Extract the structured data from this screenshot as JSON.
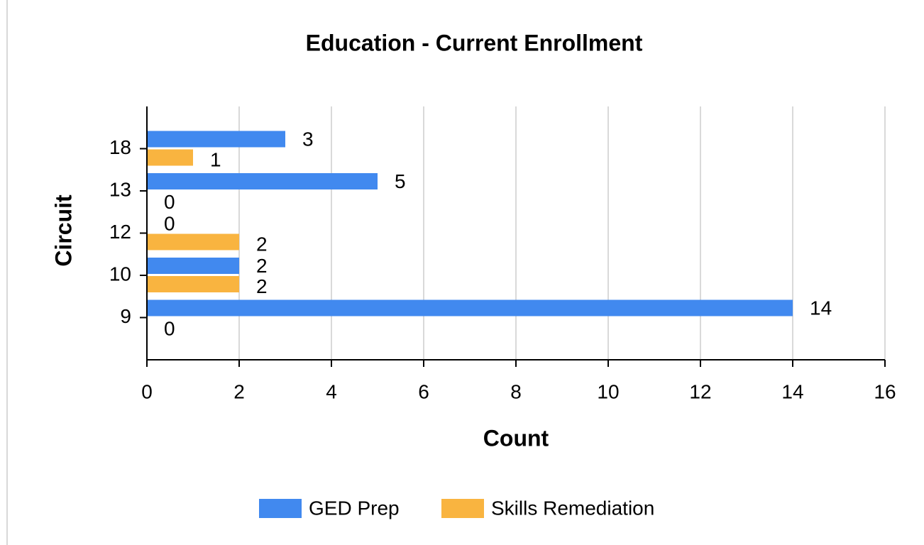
{
  "chart_data": {
    "type": "bar",
    "orientation": "horizontal",
    "title": "Education - Current Enrollment",
    "xlabel": "Count",
    "ylabel": "Circuit",
    "categories": [
      "18",
      "13",
      "12",
      "10",
      "9"
    ],
    "series": [
      {
        "name": "GED Prep",
        "color": "#4189ef",
        "values": [
          3,
          5,
          0,
          2,
          14
        ]
      },
      {
        "name": "Skills Remediation",
        "color": "#f9b440",
        "values": [
          1,
          0,
          2,
          2,
          0
        ]
      }
    ],
    "xlim": [
      0,
      16
    ],
    "xticks": [
      0,
      2,
      4,
      6,
      8,
      10,
      12,
      14,
      16
    ],
    "grid": true,
    "legend": "bottom"
  }
}
